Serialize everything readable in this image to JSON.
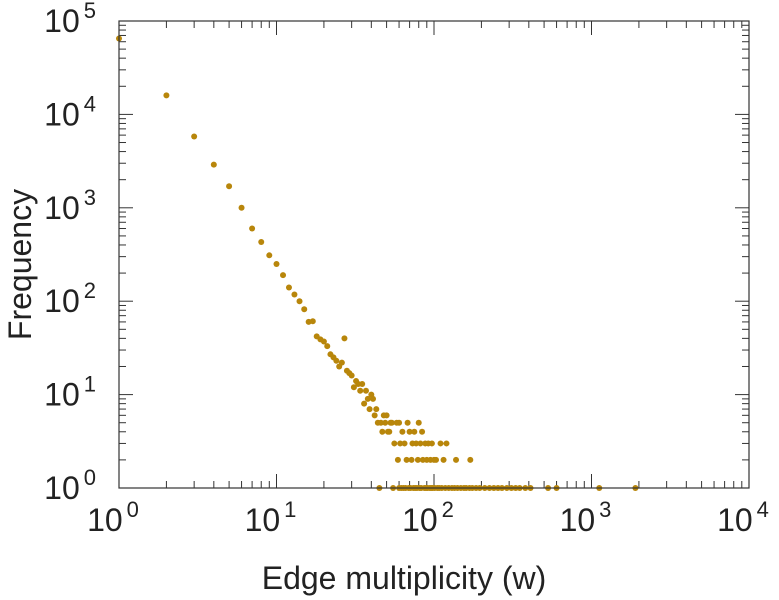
{
  "chart_data": {
    "type": "scatter",
    "title": "",
    "xlabel": "Edge multiplicity (w)",
    "ylabel": "Frequency",
    "x_scale": "log",
    "y_scale": "log",
    "xlim": [
      1,
      10000
    ],
    "ylim": [
      1,
      100000
    ],
    "grid": false,
    "marker_color": "#b8860b",
    "x_ticks": [
      {
        "base": "10",
        "exp": "0",
        "value": 1
      },
      {
        "base": "10",
        "exp": "1",
        "value": 10
      },
      {
        "base": "10",
        "exp": "2",
        "value": 100
      },
      {
        "base": "10",
        "exp": "3",
        "value": 1000
      },
      {
        "base": "10",
        "exp": "4",
        "value": 10000
      }
    ],
    "y_ticks": [
      {
        "base": "10",
        "exp": "0",
        "value": 1
      },
      {
        "base": "10",
        "exp": "1",
        "value": 10
      },
      {
        "base": "10",
        "exp": "2",
        "value": 100
      },
      {
        "base": "10",
        "exp": "3",
        "value": 1000
      },
      {
        "base": "10",
        "exp": "4",
        "value": 10000
      },
      {
        "base": "10",
        "exp": "5",
        "value": 100000
      }
    ],
    "points": [
      [
        1,
        65000
      ],
      [
        2,
        16000
      ],
      [
        3,
        5800
      ],
      [
        4,
        2900
      ],
      [
        5,
        1700
      ],
      [
        6,
        1000
      ],
      [
        7,
        600
      ],
      [
        8,
        430
      ],
      [
        9,
        310
      ],
      [
        10,
        250
      ],
      [
        11,
        190
      ],
      [
        12,
        140
      ],
      [
        13,
        118
      ],
      [
        14,
        100
      ],
      [
        15,
        82
      ],
      [
        16,
        60
      ],
      [
        17,
        61
      ],
      [
        18,
        42
      ],
      [
        19,
        39
      ],
      [
        20,
        37
      ],
      [
        21,
        33
      ],
      [
        22,
        27
      ],
      [
        23,
        25
      ],
      [
        24,
        23
      ],
      [
        25,
        20
      ],
      [
        26,
        22
      ],
      [
        27,
        40
      ],
      [
        28,
        18
      ],
      [
        29,
        17
      ],
      [
        30,
        16
      ],
      [
        31,
        12
      ],
      [
        32,
        14
      ],
      [
        33,
        13
      ],
      [
        34,
        11
      ],
      [
        35,
        13
      ],
      [
        36,
        8
      ],
      [
        37,
        11
      ],
      [
        38,
        9
      ],
      [
        39,
        7
      ],
      [
        40,
        10
      ],
      [
        41,
        9
      ],
      [
        42,
        6
      ],
      [
        43,
        7
      ],
      [
        44,
        5
      ],
      [
        46,
        5
      ],
      [
        47,
        4
      ],
      [
        48,
        6
      ],
      [
        49,
        5
      ],
      [
        50,
        6
      ],
      [
        51,
        4
      ],
      [
        52,
        4
      ],
      [
        53,
        5
      ],
      [
        54,
        5
      ],
      [
        56,
        3
      ],
      [
        58,
        5
      ],
      [
        59,
        2
      ],
      [
        60,
        5
      ],
      [
        61,
        3
      ],
      [
        63,
        4
      ],
      [
        65,
        3
      ],
      [
        67,
        2
      ],
      [
        68,
        5
      ],
      [
        70,
        4
      ],
      [
        72,
        2
      ],
      [
        73,
        3
      ],
      [
        75,
        4
      ],
      [
        77,
        3
      ],
      [
        79,
        2
      ],
      [
        80,
        5
      ],
      [
        82,
        3
      ],
      [
        84,
        4
      ],
      [
        85,
        2
      ],
      [
        88,
        3
      ],
      [
        90,
        2
      ],
      [
        92,
        3
      ],
      [
        95,
        2
      ],
      [
        97,
        3
      ],
      [
        100,
        2
      ],
      [
        103,
        2
      ],
      [
        110,
        3
      ],
      [
        115,
        2
      ],
      [
        120,
        3
      ],
      [
        138,
        2
      ],
      [
        170,
        2
      ],
      [
        45,
        1
      ],
      [
        55,
        1
      ],
      [
        60,
        1
      ],
      [
        62,
        1
      ],
      [
        64,
        1
      ],
      [
        66,
        1
      ],
      [
        69,
        1
      ],
      [
        71,
        1
      ],
      [
        74,
        1
      ],
      [
        76,
        1
      ],
      [
        78,
        1
      ],
      [
        81,
        1
      ],
      [
        83,
        1
      ],
      [
        87,
        1
      ],
      [
        89,
        1
      ],
      [
        91,
        1
      ],
      [
        94,
        1
      ],
      [
        96,
        1
      ],
      [
        98,
        1
      ],
      [
        101,
        1
      ],
      [
        105,
        1
      ],
      [
        108,
        1
      ],
      [
        112,
        1
      ],
      [
        118,
        1
      ],
      [
        124,
        1
      ],
      [
        130,
        1
      ],
      [
        135,
        1
      ],
      [
        141,
        1
      ],
      [
        148,
        1
      ],
      [
        155,
        1
      ],
      [
        160,
        1
      ],
      [
        168,
        1
      ],
      [
        175,
        1
      ],
      [
        185,
        1
      ],
      [
        195,
        1
      ],
      [
        210,
        1
      ],
      [
        225,
        1
      ],
      [
        240,
        1
      ],
      [
        255,
        1
      ],
      [
        270,
        1
      ],
      [
        290,
        1
      ],
      [
        310,
        1
      ],
      [
        330,
        1
      ],
      [
        350,
        1
      ],
      [
        380,
        1
      ],
      [
        410,
        1
      ],
      [
        530,
        1
      ],
      [
        600,
        1
      ],
      [
        1120,
        1
      ],
      [
        1900,
        1
      ]
    ]
  }
}
